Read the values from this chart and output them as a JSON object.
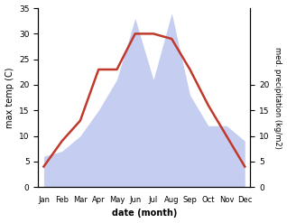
{
  "months": [
    "Jan",
    "Feb",
    "Mar",
    "Apr",
    "May",
    "Jun",
    "Jul",
    "Aug",
    "Sep",
    "Oct",
    "Nov",
    "Dec"
  ],
  "temperature": [
    4,
    9,
    13,
    23,
    23,
    30,
    30,
    29,
    23,
    16,
    10,
    4
  ],
  "precipitation": [
    6,
    7,
    10,
    15,
    21,
    33,
    21,
    34,
    18,
    12,
    12,
    9
  ],
  "temp_color": "#c0392b",
  "precip_fill_color": "#c5cdf0",
  "xlabel": "date (month)",
  "ylabel_left": "max temp (C)",
  "ylabel_right": "med. precipitation (kg/m2)",
  "ylim_left": [
    0,
    35
  ],
  "ylim_right": [
    0,
    35
  ],
  "yticks_left": [
    0,
    5,
    10,
    15,
    20,
    25,
    30,
    35
  ],
  "yticks_right_vals": [
    0,
    5,
    10,
    15,
    20
  ],
  "yticks_right_pos": [
    0,
    5,
    10,
    15,
    20
  ],
  "background_color": "#ffffff"
}
